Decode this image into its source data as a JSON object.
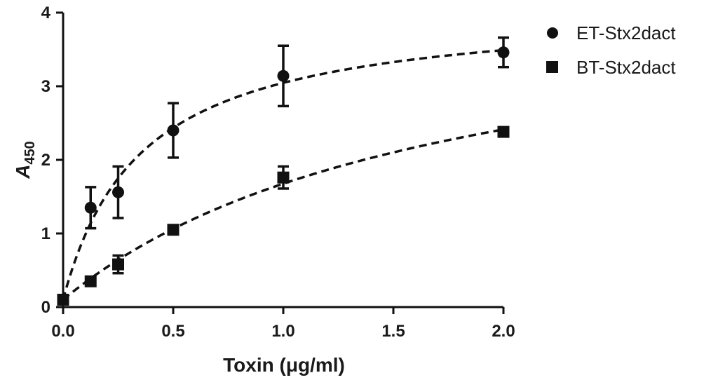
{
  "chart_data": {
    "type": "scatter",
    "xlabel": "Toxin (μg/ml)",
    "ylabel": {
      "main": "A",
      "subscript": "450"
    },
    "xlim": [
      0,
      2.0
    ],
    "ylim": [
      0,
      4
    ],
    "xticks": [
      0.0,
      0.5,
      1.0,
      1.5,
      2.0
    ],
    "xtick_labels": [
      "0.0",
      "0.5",
      "1.0",
      "1.5",
      "2.0"
    ],
    "yticks": [
      0,
      1,
      2,
      3,
      4
    ],
    "ytick_labels": [
      "0",
      "1",
      "2",
      "3",
      "4"
    ],
    "legend_position": "top-right",
    "grid": false,
    "series": [
      {
        "name": "ET-Stx2dact",
        "marker": "circle",
        "color": "#111111",
        "fit": "dashed saturation curve",
        "points": [
          {
            "x": 0.0,
            "y": 0.1,
            "err": 0.05
          },
          {
            "x": 0.125,
            "y": 1.35,
            "err": 0.28
          },
          {
            "x": 0.25,
            "y": 1.56,
            "err": 0.35
          },
          {
            "x": 0.5,
            "y": 2.4,
            "err": 0.37
          },
          {
            "x": 1.0,
            "y": 3.14,
            "err": 0.41
          },
          {
            "x": 2.0,
            "y": 3.46,
            "err": 0.2
          }
        ]
      },
      {
        "name": "BT-Stx2dact",
        "marker": "square",
        "color": "#111111",
        "fit": "dashed saturation curve",
        "points": [
          {
            "x": 0.0,
            "y": 0.1,
            "err": 0.03
          },
          {
            "x": 0.125,
            "y": 0.35,
            "err": 0.03
          },
          {
            "x": 0.25,
            "y": 0.58,
            "err": 0.12
          },
          {
            "x": 0.5,
            "y": 1.05,
            "err": 0.03
          },
          {
            "x": 1.0,
            "y": 1.76,
            "err": 0.15
          },
          {
            "x": 2.0,
            "y": 2.38,
            "err": 0.03
          }
        ]
      }
    ]
  }
}
